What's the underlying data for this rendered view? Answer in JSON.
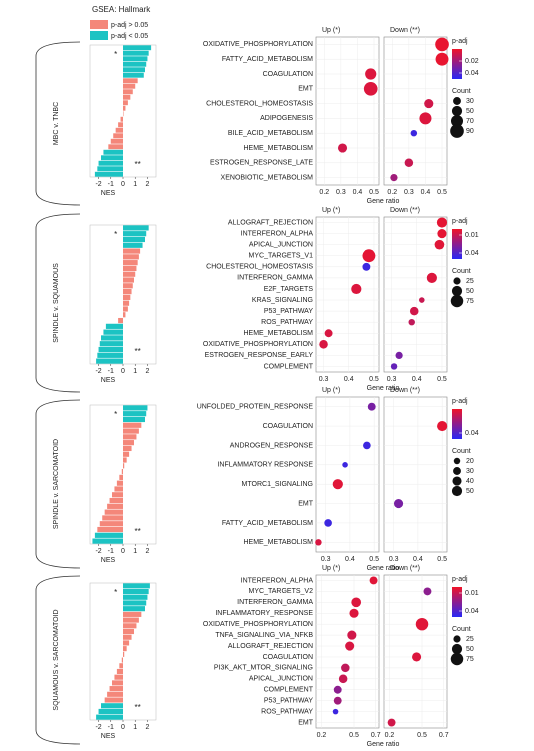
{
  "figure": {
    "title": "GSEA: Hallmark",
    "legend": [
      {
        "label": "p-adj > 0.05",
        "color": "#f4877a"
      },
      {
        "label": "p-adj < 0.05",
        "color": "#1cc3c3"
      }
    ]
  },
  "chart_data": [
    {
      "type": "waterfall",
      "title": "MBC v. TNBC",
      "xlabel": "NES",
      "xlim": [
        -2.7,
        2.7
      ],
      "xticks": [
        -2,
        -1,
        0,
        1,
        2
      ],
      "top_mark": "*",
      "bottom_mark": "**",
      "values": [
        2.3,
        2.1,
        2.0,
        1.9,
        1.8,
        1.7,
        1.2,
        1.0,
        0.8,
        0.6,
        0.4,
        0.2,
        0,
        -0.2,
        -0.4,
        -0.6,
        -0.8,
        -1.0,
        -1.2,
        -1.6,
        -1.8,
        -2.0,
        -2.1,
        -2.3
      ],
      "significant": [
        true,
        true,
        true,
        true,
        true,
        true,
        false,
        false,
        false,
        false,
        false,
        false,
        false,
        false,
        false,
        false,
        false,
        false,
        false,
        true,
        true,
        true,
        true,
        true
      ]
    },
    {
      "type": "dot",
      "xlabel": "Gene ratio",
      "xlim": [
        0.15,
        0.53
      ],
      "xticks": [
        0.2,
        0.3,
        0.4,
        0.5
      ],
      "categories": [
        "OXIDATIVE_PHOSPHORYLATION",
        "FATTY_ACID_METABOLISM",
        "COAGULATION",
        "EMT",
        "CHOLESTEROL_HOMEOSTASIS",
        "ADIPOGENESIS",
        "BILE_ACID_METABOLISM",
        "HEME_METABOLISM",
        "ESTROGEN_RESPONSE_LATE",
        "XENOBIOTIC_METABOLISM"
      ],
      "facets": [
        {
          "name": "Up (*)",
          "values": [
            null,
            null,
            0.48,
            0.48,
            null,
            null,
            null,
            0.31,
            null,
            null
          ],
          "sizes": [
            null,
            null,
            60,
            90,
            null,
            null,
            null,
            40,
            null,
            null
          ],
          "padj": [
            null,
            null,
            0.005,
            0.005,
            null,
            null,
            null,
            0.008,
            null,
            null
          ]
        },
        {
          "name": "Down (**)",
          "values": [
            0.5,
            0.5,
            null,
            null,
            0.42,
            0.4,
            0.33,
            null,
            0.3,
            0.21
          ],
          "sizes": [
            90,
            80,
            null,
            null,
            40,
            70,
            20,
            null,
            35,
            25
          ],
          "padj": [
            0.002,
            0.002,
            null,
            null,
            0.008,
            0.005,
            0.045,
            null,
            0.01,
            0.02
          ]
        }
      ],
      "color_legend": {
        "title": "p-adj",
        "lim": [
          0,
          0.05
        ],
        "ticks": [
          0.02,
          0.04
        ]
      },
      "size_legend": {
        "title": "Count",
        "values": [
          30,
          50,
          70,
          90
        ]
      }
    },
    {
      "type": "waterfall",
      "title": "SPINDLE v. SQUAMOUS",
      "xlabel": "NES",
      "xlim": [
        -2.7,
        2.7
      ],
      "xticks": [
        -2,
        -1,
        0,
        1,
        2
      ],
      "top_mark": "*",
      "bottom_mark": "**",
      "values": [
        2.1,
        1.9,
        1.8,
        1.6,
        1.4,
        1.3,
        1.2,
        1.1,
        1.0,
        0.9,
        0.8,
        0.7,
        0.6,
        0.5,
        0.4,
        0.2,
        -0.4,
        -1.4,
        -1.6,
        -1.8,
        -1.9,
        -2.0,
        -2.1,
        -2.2
      ],
      "significant": [
        true,
        true,
        true,
        true,
        false,
        false,
        false,
        false,
        false,
        false,
        false,
        false,
        false,
        false,
        false,
        false,
        false,
        true,
        true,
        true,
        true,
        true,
        true,
        true
      ]
    },
    {
      "type": "dot",
      "xlabel": "Gene ratio",
      "xlim": [
        0.27,
        0.52
      ],
      "xticks": [
        0.3,
        0.4,
        0.5
      ],
      "categories": [
        "ALLOGRAFT_REJECTION",
        "INTERFERON_ALPHA",
        "APICAL_JUNCTION",
        "MYC_TARGETS_V1",
        "CHOLESTEROL_HOMEOSTASIS",
        "INTERFERON_GAMMA",
        "E2F_TARGETS",
        "KRAS_SIGNALING",
        "P53_PATHWAY",
        "ROS_PATHWAY",
        "HEME_METABOLISM",
        "OXIDATIVE_PHOSPHORYLATION",
        "ESTROGEN_RESPONSE_EARLY",
        "COMPLEMENT"
      ],
      "facets": [
        {
          "name": "Up (*)",
          "values": [
            null,
            null,
            null,
            0.48,
            0.47,
            null,
            0.43,
            null,
            null,
            null,
            0.32,
            0.3,
            null,
            null
          ],
          "sizes": [
            null,
            null,
            null,
            80,
            30,
            null,
            50,
            null,
            null,
            null,
            30,
            35,
            null,
            null
          ],
          "padj": [
            null,
            null,
            null,
            0.003,
            0.045,
            null,
            0.005,
            null,
            null,
            null,
            0.006,
            0.006,
            null,
            null
          ]
        },
        {
          "name": "Down (**)",
          "values": [
            0.5,
            0.5,
            0.49,
            null,
            null,
            0.46,
            null,
            0.42,
            0.39,
            0.38,
            null,
            null,
            0.33,
            0.31
          ],
          "sizes": [
            50,
            40,
            45,
            null,
            null,
            50,
            null,
            15,
            35,
            20,
            null,
            null,
            25,
            20
          ],
          "padj": [
            0.003,
            0.003,
            0.004,
            null,
            null,
            0.005,
            null,
            0.01,
            0.008,
            0.012,
            null,
            null,
            0.03,
            0.035
          ]
        }
      ],
      "color_legend": {
        "title": "p-adj",
        "lim": [
          0,
          0.05
        ],
        "ticks": [
          0.01,
          0.04
        ]
      },
      "size_legend": {
        "title": "Count",
        "values": [
          25,
          50,
          75
        ]
      }
    },
    {
      "type": "waterfall",
      "title": "SPINDLE v. SARCOMATOID",
      "xlabel": "NES",
      "xlim": [
        -2.7,
        2.7
      ],
      "xticks": [
        -2,
        -1,
        0,
        1,
        2
      ],
      "top_mark": "*",
      "bottom_mark": "**",
      "values": [
        2.0,
        1.9,
        1.8,
        1.5,
        1.3,
        1.1,
        0.9,
        0.7,
        0.5,
        0.3,
        0.1,
        -0.1,
        -0.3,
        -0.5,
        -0.7,
        -0.9,
        -1.1,
        -1.3,
        -1.5,
        -1.7,
        -1.9,
        -2.1,
        -2.3,
        -2.5
      ],
      "significant": [
        true,
        true,
        true,
        false,
        false,
        false,
        false,
        false,
        false,
        false,
        false,
        false,
        false,
        false,
        false,
        false,
        false,
        false,
        false,
        false,
        false,
        false,
        true,
        true
      ]
    },
    {
      "type": "dot",
      "xlabel": "Gene ratio",
      "xlim": [
        0.26,
        0.52
      ],
      "xticks": [
        0.3,
        0.4,
        0.5
      ],
      "categories": [
        "UNFOLDED_PROTEIN_RESPONSE",
        "COAGULATION",
        "ANDROGEN_RESPONSE",
        "INFLAMMATORY RESPONSE",
        "MTORC1_SIGNALING",
        "EMT",
        "FATTY_ACID_METABOLISM",
        "HEME_METABOLISM"
      ],
      "facets": [
        {
          "name": "Up (*)",
          "values": [
            0.49,
            null,
            0.47,
            0.38,
            0.35,
            null,
            0.31,
            0.27
          ],
          "sizes": [
            30,
            null,
            28,
            15,
            50,
            null,
            28,
            20
          ],
          "padj": [
            0.03,
            null,
            0.045,
            0.045,
            0.004,
            null,
            0.045,
            0.006
          ]
        },
        {
          "name": "Down (**)",
          "values": [
            null,
            0.5,
            null,
            null,
            null,
            0.32,
            null,
            null
          ],
          "sizes": [
            null,
            50,
            null,
            null,
            null,
            40,
            null,
            null
          ],
          "padj": [
            null,
            0.003,
            null,
            null,
            null,
            0.03,
            null,
            null
          ]
        }
      ],
      "color_legend": {
        "title": "p-adj",
        "lim": [
          0,
          0.05
        ],
        "ticks": [
          0.04
        ]
      },
      "size_legend": {
        "title": "Count",
        "values": [
          20,
          30,
          40,
          50
        ]
      }
    },
    {
      "type": "waterfall",
      "title": "SQUAMOUS v. SARCOMATOID",
      "xlabel": "NES",
      "xlim": [
        -2.7,
        2.7
      ],
      "xticks": [
        -2,
        -1,
        0,
        1,
        2
      ],
      "top_mark": "*",
      "bottom_mark": "**",
      "values": [
        2.2,
        2.1,
        2.0,
        1.9,
        1.8,
        1.5,
        1.3,
        1.1,
        0.9,
        0.7,
        0.5,
        0.3,
        0.1,
        -0.1,
        -0.3,
        -0.5,
        -0.7,
        -0.9,
        -1.1,
        -1.3,
        -1.5,
        -1.8,
        -2.0,
        -2.2
      ],
      "significant": [
        true,
        true,
        true,
        true,
        true,
        false,
        false,
        false,
        false,
        false,
        false,
        false,
        false,
        false,
        false,
        false,
        false,
        false,
        false,
        false,
        false,
        true,
        true,
        true
      ]
    },
    {
      "type": "dot",
      "xlabel": "Gene ratio",
      "xlim": [
        0.15,
        0.73
      ],
      "xticks": [
        0.2,
        0.5,
        0.7
      ],
      "categories": [
        "INTERFERON_ALPHA",
        "MYC_TARGETS_V2",
        "INTERFERON_GAMMA",
        "INFLAMMATORY_RESPONSE",
        "OXIDATIVE_PHOSPHORYLATION",
        "TNFA_SIGNALING_VIA_NFKB",
        "ALLOGRAFT_REJECTION",
        "COAGULATION",
        "PI3K_AKT_MTOR_SIGNALING",
        "APICAL_JUNCTION",
        "COMPLEMENT",
        "P53_PATHWAY",
        "ROS_PATHWAY",
        "EMT"
      ],
      "facets": [
        {
          "name": "Up (*)",
          "values": [
            0.68,
            null,
            0.52,
            0.5,
            null,
            0.48,
            0.46,
            null,
            0.42,
            0.4,
            0.35,
            0.35,
            0.33,
            null
          ],
          "sizes": [
            30,
            null,
            45,
            40,
            null,
            40,
            40,
            null,
            35,
            35,
            30,
            30,
            15,
            null
          ],
          "padj": [
            0.004,
            null,
            0.005,
            0.005,
            null,
            0.008,
            0.006,
            null,
            0.012,
            0.01,
            0.025,
            0.02,
            0.045,
            null
          ]
        },
        {
          "name": "Down (**)",
          "values": [
            null,
            0.55,
            null,
            null,
            0.5,
            null,
            null,
            0.45,
            null,
            null,
            null,
            null,
            null,
            0.22
          ],
          "sizes": [
            null,
            30,
            null,
            null,
            75,
            null,
            null,
            40,
            null,
            null,
            null,
            null,
            null,
            30
          ],
          "padj": [
            null,
            0.025,
            null,
            null,
            0.004,
            null,
            null,
            0.005,
            null,
            null,
            null,
            null,
            null,
            0.008
          ]
        }
      ],
      "color_legend": {
        "title": "p-adj",
        "lim": [
          0,
          0.05
        ],
        "ticks": [
          0.01,
          0.04
        ]
      },
      "size_legend": {
        "title": "Count",
        "values": [
          25,
          50,
          75
        ]
      }
    }
  ]
}
